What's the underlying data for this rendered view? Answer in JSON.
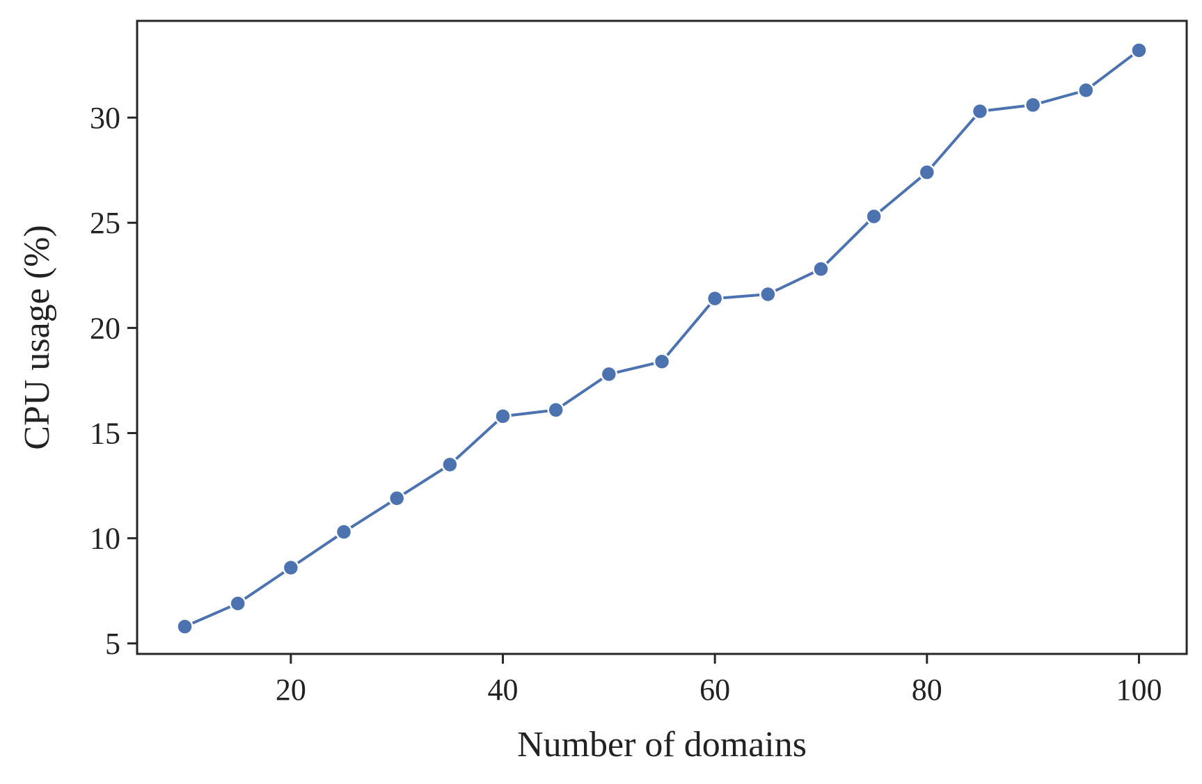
{
  "chart_data": {
    "type": "line",
    "title": "",
    "xlabel": "Number of domains",
    "ylabel": "CPU usage (%)",
    "xlim": [
      5.5,
      104.5
    ],
    "ylim": [
      4.5,
      34.6
    ],
    "xticks": [
      20,
      40,
      60,
      80,
      100
    ],
    "yticks": [
      5,
      10,
      15,
      20,
      25,
      30
    ],
    "grid": false,
    "series": [
      {
        "color": "#4c72b0",
        "x": [
          10,
          15,
          20,
          25,
          30,
          35,
          40,
          45,
          50,
          55,
          60,
          65,
          70,
          75,
          80,
          85,
          90,
          95,
          100
        ],
        "y": [
          5.8,
          6.9,
          8.6,
          10.3,
          11.9,
          13.5,
          15.8,
          16.1,
          17.8,
          18.4,
          21.4,
          21.6,
          22.8,
          25.3,
          27.4,
          30.3,
          30.6,
          31.3,
          33.2
        ]
      }
    ]
  }
}
